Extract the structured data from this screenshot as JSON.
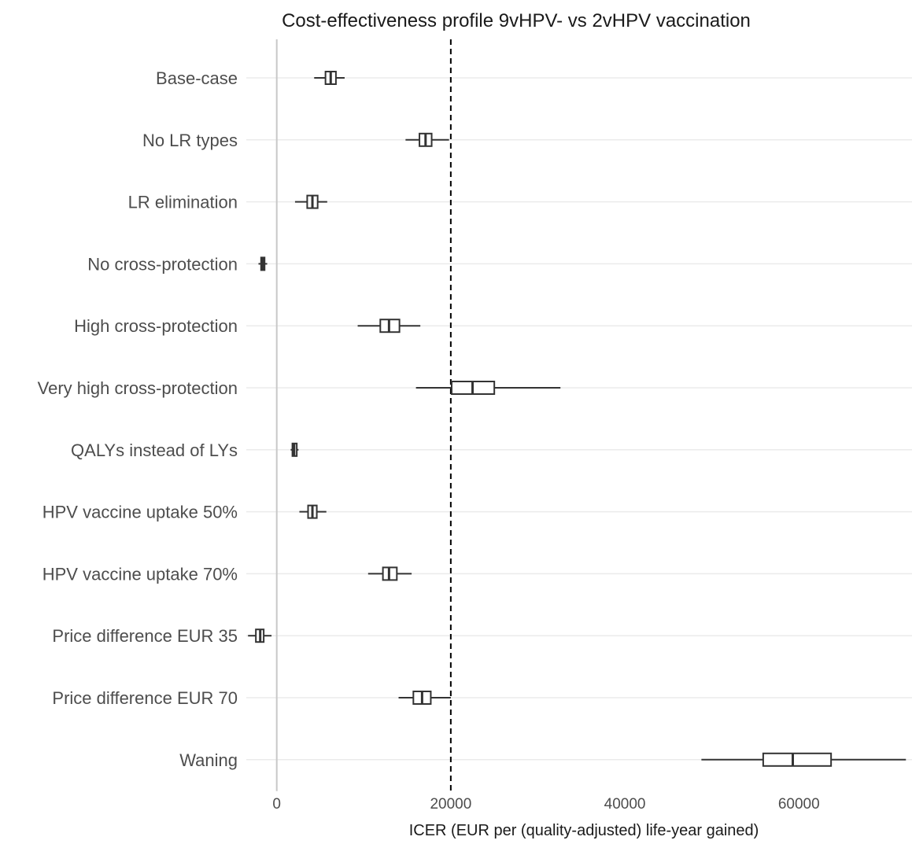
{
  "chart_data": {
    "type": "boxplot",
    "title": "Cost-effectiveness profile 9vHPV- vs 2vHPV vaccination",
    "xlabel": "ICER (EUR per (quality-adjusted) life-year gained)",
    "ylabel": "",
    "xlim": [
      -3500,
      73000
    ],
    "x_ticks": [
      0,
      20000,
      40000,
      60000
    ],
    "x_tick_labels": [
      "0",
      "20000",
      "40000",
      "60000"
    ],
    "reference_line": {
      "x": 20000,
      "style": "dashed"
    },
    "zero_line": {
      "x": 0
    },
    "grid": true,
    "categories": [
      "Base-case",
      "No LR types",
      "LR elimination",
      "No cross-protection",
      "High cross-protection",
      "Very high cross-protection",
      "QALYs instead of LYs",
      "HPV vaccine uptake 50%",
      "HPV vaccine uptake 70%",
      "Price difference EUR 35",
      "Price difference EUR 70",
      "Waning"
    ],
    "boxes": [
      {
        "whisker_low": 4300,
        "q1": 5600,
        "median": 6200,
        "q3": 6800,
        "whisker_high": 7800
      },
      {
        "whisker_low": 14800,
        "q1": 16400,
        "median": 17100,
        "q3": 17800,
        "whisker_high": 19800
      },
      {
        "whisker_low": 2100,
        "q1": 3500,
        "median": 4100,
        "q3": 4700,
        "whisker_high": 5800
      },
      {
        "whisker_low": -2100,
        "q1": -1800,
        "median": -1600,
        "q3": -1400,
        "whisker_high": -1100
      },
      {
        "whisker_low": 9300,
        "q1": 11900,
        "median": 12900,
        "q3": 14100,
        "whisker_high": 16500
      },
      {
        "whisker_low": 16000,
        "q1": 20100,
        "median": 22500,
        "q3": 25000,
        "whisker_high": 32600
      },
      {
        "whisker_low": 1600,
        "q1": 1800,
        "median": 2000,
        "q3": 2300,
        "whisker_high": 2500
      },
      {
        "whisker_low": 2600,
        "q1": 3600,
        "median": 4100,
        "q3": 4600,
        "whisker_high": 5700
      },
      {
        "whisker_low": 10500,
        "q1": 12200,
        "median": 12900,
        "q3": 13800,
        "whisker_high": 15500
      },
      {
        "whisker_low": -3300,
        "q1": -2400,
        "median": -1900,
        "q3": -1500,
        "whisker_high": -600
      },
      {
        "whisker_low": 14000,
        "q1": 15700,
        "median": 16700,
        "q3": 17700,
        "whisker_high": 20000
      },
      {
        "whisker_low": 48800,
        "q1": 55900,
        "median": 59300,
        "q3": 63700,
        "whisker_high": 72300
      }
    ],
    "colors": {
      "box_stroke": "#333333",
      "grid": "#ebebeb",
      "zero_line": "#c8c8c8",
      "reference_line": "#000000",
      "text": "#4d4d4d",
      "title": "#1a1a1a"
    }
  }
}
